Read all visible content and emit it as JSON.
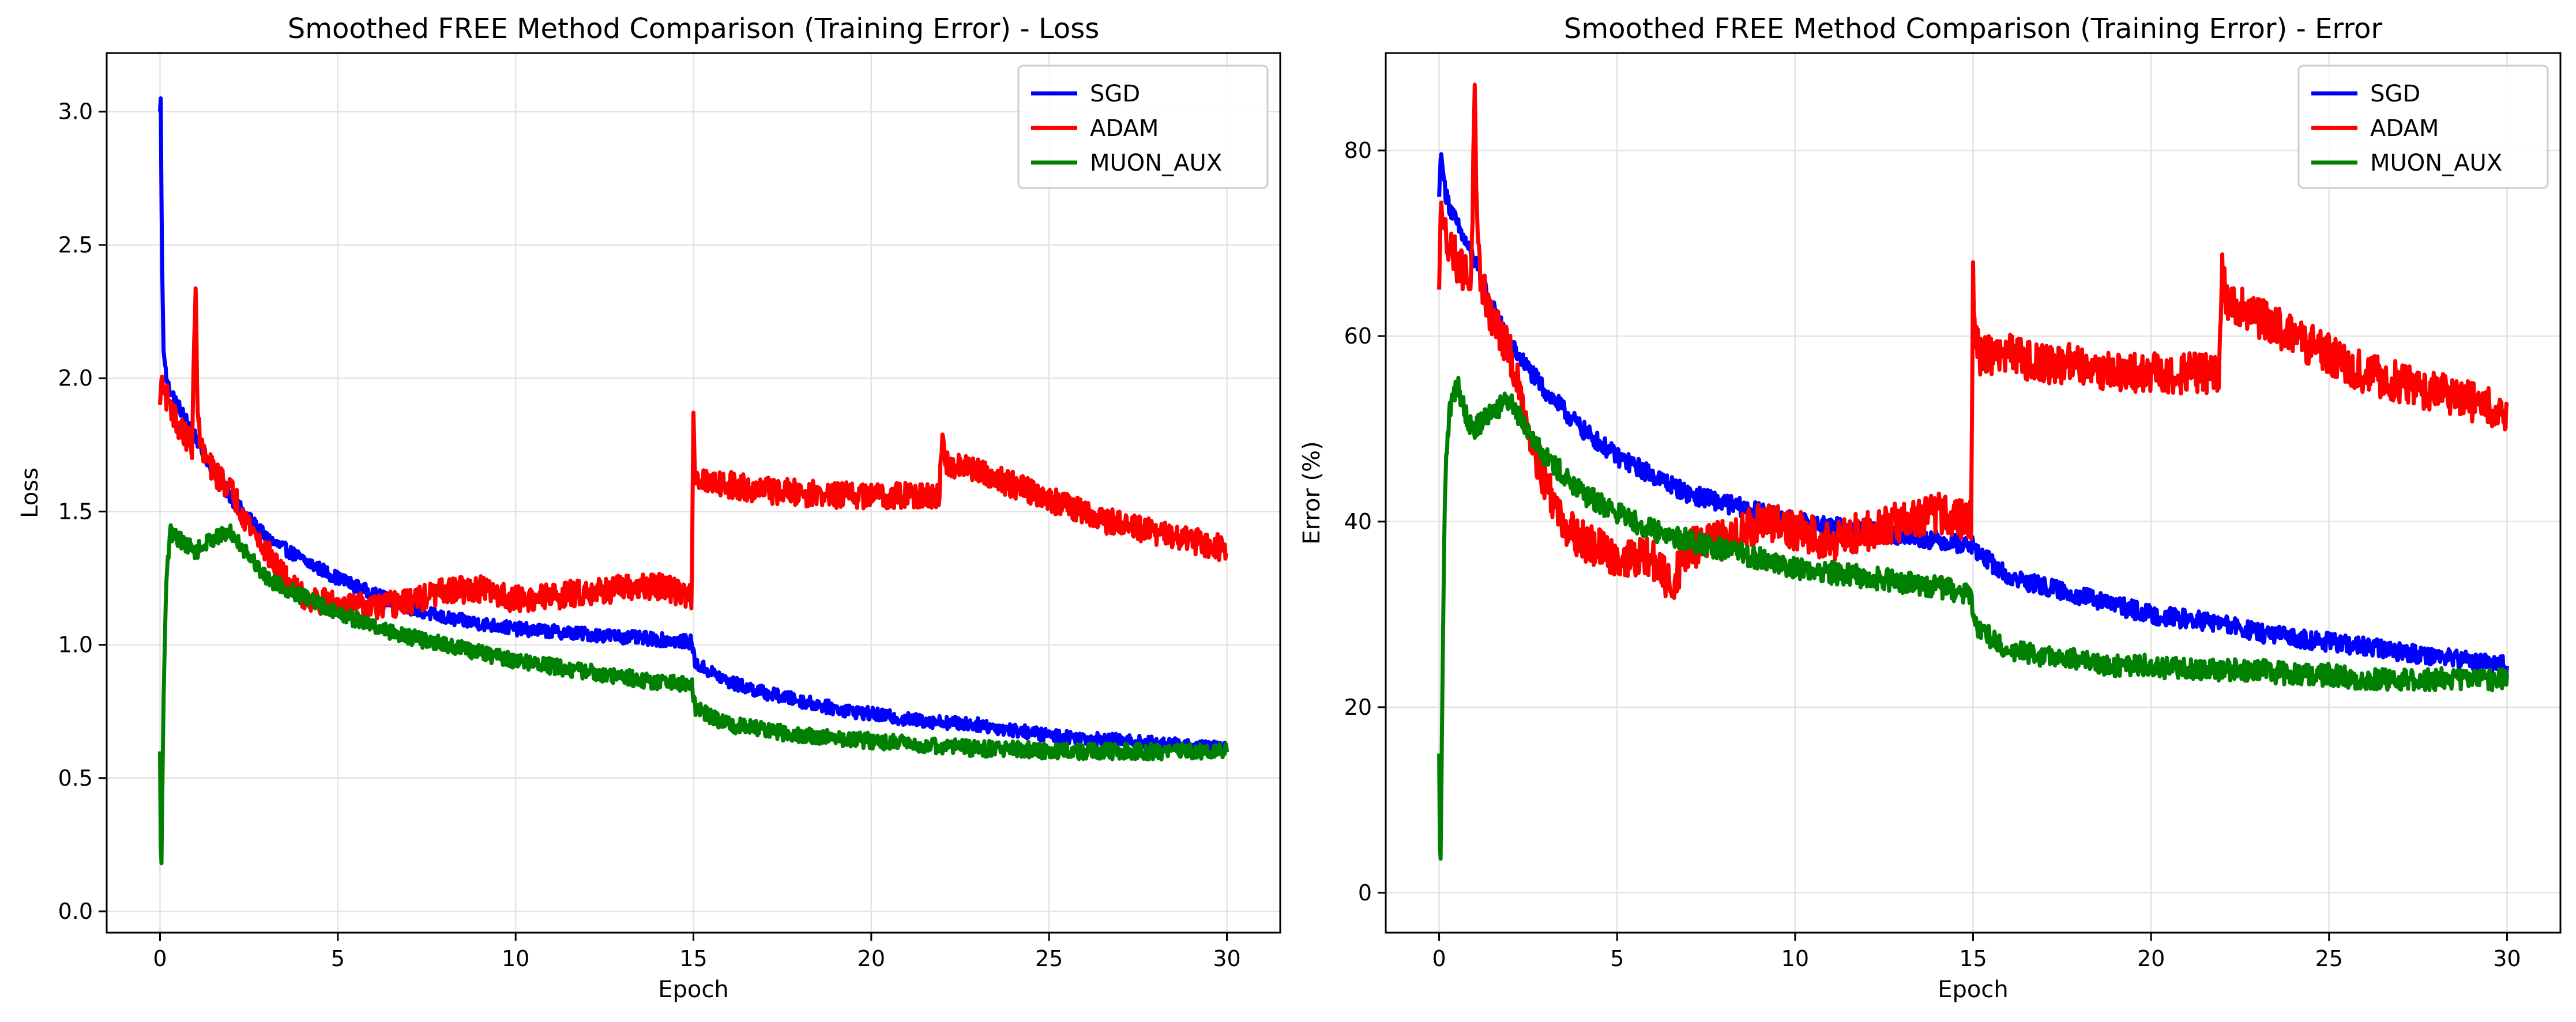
{
  "chart_data": [
    {
      "type": "line",
      "title": "Smoothed FREE Method Comparison (Training Error) - Loss",
      "xlabel": "Epoch",
      "ylabel": "Loss",
      "xlim": [
        -1.5,
        31.5
      ],
      "ylim": [
        -0.08,
        3.22
      ],
      "xticks": [
        0,
        5,
        10,
        15,
        20,
        25,
        30
      ],
      "xtick_labels": [
        "0",
        "5",
        "10",
        "15",
        "20",
        "25",
        "30"
      ],
      "yticks": [
        0.0,
        0.5,
        1.0,
        1.5,
        2.0,
        2.5,
        3.0
      ],
      "ytick_labels": [
        "0.0",
        "0.5",
        "1.0",
        "1.5",
        "2.0",
        "2.5",
        "3.0"
      ],
      "grid": true,
      "legend_position": "top-right",
      "series": [
        {
          "name": "SGD",
          "color": "#0000ff",
          "amplitude": 0.025,
          "x": [
            0,
            0.02,
            0.05,
            0.1,
            0.2,
            0.5,
            1,
            1.5,
            2,
            3,
            4,
            5,
            6,
            7,
            8,
            9,
            10,
            11,
            12,
            13,
            14,
            14.95,
            15.05,
            16,
            17,
            18,
            19,
            20,
            21,
            22,
            23,
            24,
            25,
            26,
            27,
            28,
            29,
            30
          ],
          "y": [
            3.0,
            3.05,
            2.5,
            2.1,
            1.98,
            1.9,
            1.78,
            1.65,
            1.55,
            1.4,
            1.32,
            1.25,
            1.19,
            1.14,
            1.1,
            1.08,
            1.06,
            1.05,
            1.04,
            1.03,
            1.02,
            1.01,
            0.93,
            0.86,
            0.82,
            0.79,
            0.76,
            0.74,
            0.72,
            0.71,
            0.7,
            0.68,
            0.66,
            0.65,
            0.64,
            0.63,
            0.62,
            0.61
          ]
        },
        {
          "name": "ADAM",
          "color": "#ff0000",
          "amplitude": 0.05,
          "x": [
            0,
            0.05,
            0.1,
            0.3,
            0.5,
            0.9,
            1.0,
            1.05,
            1.1,
            1.2,
            1.5,
            2,
            2.5,
            3,
            3.5,
            4,
            5,
            6,
            7,
            8,
            9,
            10,
            11,
            12,
            13,
            14,
            14.95,
            15.0,
            15.05,
            15.2,
            16,
            17,
            18,
            19,
            20,
            21,
            21.9,
            22.0,
            22.1,
            23,
            24,
            25,
            26,
            27,
            28,
            29,
            30
          ],
          "y": [
            1.9,
            2.02,
            1.95,
            1.9,
            1.82,
            1.75,
            2.34,
            1.95,
            1.8,
            1.72,
            1.65,
            1.58,
            1.45,
            1.35,
            1.25,
            1.18,
            1.15,
            1.14,
            1.16,
            1.2,
            1.21,
            1.17,
            1.18,
            1.2,
            1.21,
            1.22,
            1.18,
            1.87,
            1.64,
            1.62,
            1.6,
            1.58,
            1.57,
            1.56,
            1.56,
            1.56,
            1.55,
            1.76,
            1.68,
            1.65,
            1.6,
            1.55,
            1.49,
            1.45,
            1.42,
            1.39,
            1.36
          ]
        },
        {
          "name": "MUON_AUX",
          "color": "#008000",
          "amplitude": 0.03,
          "x": [
            0,
            0.03,
            0.06,
            0.1,
            0.15,
            0.2,
            0.3,
            0.5,
            1,
            1.5,
            2,
            3,
            4,
            5,
            6,
            7,
            8,
            9,
            10,
            11,
            12,
            13,
            14,
            14.95,
            15.05,
            16,
            17,
            18,
            19,
            20,
            21,
            22,
            23,
            24,
            25,
            26,
            27,
            28,
            29,
            30
          ],
          "y": [
            0.6,
            0.07,
            0.4,
            0.8,
            1.1,
            1.3,
            1.42,
            1.4,
            1.35,
            1.4,
            1.42,
            1.25,
            1.18,
            1.12,
            1.07,
            1.03,
            1.0,
            0.97,
            0.94,
            0.92,
            0.9,
            0.88,
            0.86,
            0.85,
            0.76,
            0.7,
            0.68,
            0.66,
            0.65,
            0.64,
            0.63,
            0.62,
            0.61,
            0.61,
            0.6,
            0.6,
            0.6,
            0.6,
            0.6,
            0.6
          ]
        }
      ]
    },
    {
      "type": "line",
      "title": "Smoothed FREE Method Comparison (Training Error) - Error",
      "xlabel": "Epoch",
      "ylabel": "Error (%)",
      "xlim": [
        -1.5,
        31.5
      ],
      "ylim": [
        -4.3,
        90.5
      ],
      "xticks": [
        0,
        5,
        10,
        15,
        20,
        25,
        30
      ],
      "xtick_labels": [
        "0",
        "5",
        "10",
        "15",
        "20",
        "25",
        "30"
      ],
      "yticks": [
        0,
        20,
        40,
        60,
        80
      ],
      "ytick_labels": [
        "0",
        "20",
        "40",
        "60",
        "80"
      ],
      "grid": true,
      "legend_position": "top-right",
      "series": [
        {
          "name": "SGD",
          "color": "#0000ff",
          "amplitude": 1.0,
          "x": [
            0,
            0.05,
            0.1,
            0.2,
            0.5,
            1,
            1.5,
            2,
            3,
            4,
            5,
            6,
            7,
            8,
            9,
            10,
            11,
            12,
            13,
            14,
            14.95,
            15.05,
            16,
            17,
            18,
            19,
            20,
            21,
            22,
            23,
            24,
            25,
            26,
            27,
            28,
            29,
            30
          ],
          "y": [
            75,
            80,
            78,
            75,
            72,
            68,
            63,
            59,
            54,
            50,
            47,
            45,
            43,
            42,
            41,
            40,
            39.5,
            39,
            38.5,
            38,
            37.5,
            37,
            34,
            33,
            32,
            31,
            30,
            29.5,
            29,
            28,
            27.5,
            27,
            26.5,
            26,
            25.5,
            25,
            24.5
          ]
        },
        {
          "name": "ADAM",
          "color": "#ff0000",
          "amplitude": 2.2,
          "x": [
            0,
            0.05,
            0.1,
            0.3,
            0.5,
            0.9,
            1.0,
            1.05,
            1.1,
            1.3,
            1.5,
            2,
            2.5,
            3,
            3.5,
            4,
            5,
            6,
            6.5,
            7,
            8,
            9,
            10,
            11,
            12,
            13,
            14,
            14.95,
            15.0,
            15.05,
            15.2,
            16,
            17,
            18,
            19,
            20,
            21,
            21.9,
            22.0,
            22.1,
            23,
            24,
            25,
            26,
            27,
            28,
            29,
            30
          ],
          "y": [
            65,
            75,
            72,
            70,
            68,
            66,
            86,
            73,
            68,
            64,
            62,
            58,
            50,
            44,
            40,
            38,
            36,
            36,
            33,
            37,
            38,
            40,
            39,
            38,
            39,
            40,
            41,
            40,
            68,
            60,
            58,
            58,
            57,
            57,
            56,
            56,
            56,
            56,
            67,
            64,
            62,
            60,
            58,
            56,
            55,
            54,
            53,
            52
          ]
        },
        {
          "name": "MUON_AUX",
          "color": "#008000",
          "amplitude": 1.2,
          "x": [
            0,
            0.03,
            0.06,
            0.1,
            0.15,
            0.2,
            0.3,
            0.5,
            0.8,
            1,
            1.5,
            2,
            3,
            4,
            5,
            6,
            7,
            8,
            9,
            10,
            11,
            12,
            13,
            14,
            14.95,
            15.05,
            16,
            17,
            18,
            19,
            20,
            21,
            22,
            23,
            24,
            25,
            26,
            27,
            28,
            29,
            30
          ],
          "y": [
            15,
            0.5,
            10,
            25,
            40,
            47,
            52,
            55,
            51,
            50,
            52,
            53,
            47,
            43,
            41,
            39,
            38,
            37,
            36,
            35,
            34.5,
            34,
            33.5,
            33,
            32,
            29,
            26,
            25.5,
            25,
            24.5,
            24.5,
            24,
            24,
            24,
            23.5,
            23.5,
            23,
            23,
            23,
            23,
            23
          ]
        }
      ]
    }
  ]
}
